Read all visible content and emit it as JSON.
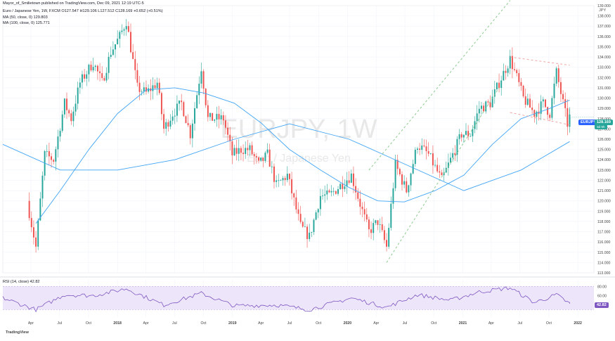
{
  "header": {
    "publisher": "Mayor_of_Smilietown published on TradingView.com, Dec 09, 2021 12:19 UTC-5",
    "symbol_line": "Euro / Japanese Yen, 1W, FXCM  O127.547  H129.106  L127.512  C128.169  +0.652 (+0.51%)",
    "ma50_line": "MA (50, close, 0)  129.803",
    "ma100_line": "MA (100, close, 0)  125.771",
    "currency": "JPY"
  },
  "watermark": {
    "symbol": "EURJPY, 1W",
    "name": "Euro / Japanese Yen"
  },
  "badges": {
    "symbol": "EURJPY",
    "price": "128.169",
    "countdown": "3d 9h"
  },
  "rsi": {
    "label": "RSI (14, close)  42.82",
    "value": 42.82
  },
  "footer": {
    "brand": "TradingView"
  },
  "colors": {
    "up": "#26a69a",
    "down": "#ef5350",
    "ma": "#42a5f5",
    "rsi": "#7e57c2",
    "rsi_band": "#ede5fa",
    "trend_green": "#81c784",
    "trend_red": "#ef9a9a"
  },
  "chart_data": {
    "type": "candlestick",
    "title": "Euro / Japanese Yen, 1W, FXCM",
    "y_ticks": [
      "139.000",
      "138.000",
      "137.000",
      "136.000",
      "135.000",
      "134.000",
      "133.000",
      "132.000",
      "131.000",
      "130.000",
      "129.000",
      "128.000",
      "127.000",
      "126.000",
      "125.000",
      "124.000",
      "123.000",
      "122.000",
      "121.000",
      "120.000",
      "119.000",
      "118.000",
      "117.000",
      "116.000",
      "115.000",
      "114.000",
      "113.000"
    ],
    "ylim": [
      113,
      139
    ],
    "x_ticks": [
      "Apr",
      "Jul",
      "Oct",
      "2018",
      "Apr",
      "Jul",
      "Oct",
      "2019",
      "Apr",
      "Jul",
      "Oct",
      "2020",
      "Apr",
      "Jul",
      "Oct",
      "2021",
      "Apr",
      "Jul",
      "Oct",
      "2022"
    ],
    "price_anchors": [
      {
        "date": "2017-03-20",
        "price": 120.0
      },
      {
        "date": "2017-04-17",
        "price": 115.5
      },
      {
        "date": "2017-05-15",
        "price": 124.5
      },
      {
        "date": "2017-06-12",
        "price": 124.0
      },
      {
        "date": "2017-07-17",
        "price": 129.5
      },
      {
        "date": "2017-08-07",
        "price": 128.0
      },
      {
        "date": "2017-09-04",
        "price": 131.5
      },
      {
        "date": "2017-10-16",
        "price": 133.5
      },
      {
        "date": "2017-11-13",
        "price": 131.5
      },
      {
        "date": "2017-12-11",
        "price": 134.5
      },
      {
        "date": "2018-01-08",
        "price": 136.0
      },
      {
        "date": "2018-01-29",
        "price": 137.5
      },
      {
        "date": "2018-03-05",
        "price": 131.0
      },
      {
        "date": "2018-04-02",
        "price": 130.5
      },
      {
        "date": "2018-05-07",
        "price": 131.5
      },
      {
        "date": "2018-05-28",
        "price": 127.0
      },
      {
        "date": "2018-06-25",
        "price": 128.5
      },
      {
        "date": "2018-07-23",
        "price": 129.5
      },
      {
        "date": "2018-08-20",
        "price": 126.5
      },
      {
        "date": "2018-09-24",
        "price": 133.0
      },
      {
        "date": "2018-10-15",
        "price": 128.0
      },
      {
        "date": "2018-12-03",
        "price": 128.0
      },
      {
        "date": "2018-12-31",
        "price": 124.5
      },
      {
        "date": "2019-01-28",
        "price": 125.0
      },
      {
        "date": "2019-02-25",
        "price": 125.0
      },
      {
        "date": "2019-03-25",
        "price": 123.5
      },
      {
        "date": "2019-04-22",
        "price": 124.5
      },
      {
        "date": "2019-05-20",
        "price": 121.5
      },
      {
        "date": "2019-06-24",
        "price": 122.5
      },
      {
        "date": "2019-08-05",
        "price": 117.5
      },
      {
        "date": "2019-09-02",
        "price": 116.5
      },
      {
        "date": "2019-10-07",
        "price": 120.5
      },
      {
        "date": "2019-11-04",
        "price": 120.5
      },
      {
        "date": "2019-12-09",
        "price": 121.5
      },
      {
        "date": "2020-01-13",
        "price": 122.5
      },
      {
        "date": "2020-02-17",
        "price": 119.0
      },
      {
        "date": "2020-03-09",
        "price": 117.0
      },
      {
        "date": "2020-04-06",
        "price": 118.0
      },
      {
        "date": "2020-05-04",
        "price": 115.5
      },
      {
        "date": "2020-06-01",
        "price": 123.5
      },
      {
        "date": "2020-07-06",
        "price": 121.0
      },
      {
        "date": "2020-08-10",
        "price": 125.5
      },
      {
        "date": "2020-09-14",
        "price": 124.5
      },
      {
        "date": "2020-10-26",
        "price": 122.0
      },
      {
        "date": "2020-11-23",
        "price": 124.0
      },
      {
        "date": "2020-12-28",
        "price": 126.5
      },
      {
        "date": "2021-01-25",
        "price": 126.5
      },
      {
        "date": "2021-02-22",
        "price": 129.0
      },
      {
        "date": "2021-03-29",
        "price": 129.5
      },
      {
        "date": "2021-04-26",
        "price": 131.5
      },
      {
        "date": "2021-05-31",
        "price": 133.8
      },
      {
        "date": "2021-06-21",
        "price": 132.0
      },
      {
        "date": "2021-07-12",
        "price": 130.0
      },
      {
        "date": "2021-08-16",
        "price": 128.5
      },
      {
        "date": "2021-09-13",
        "price": 129.5
      },
      {
        "date": "2021-10-04",
        "price": 128.5
      },
      {
        "date": "2021-10-25",
        "price": 132.5
      },
      {
        "date": "2021-11-15",
        "price": 129.5
      },
      {
        "date": "2021-11-29",
        "price": 127.5
      },
      {
        "date": "2021-12-06",
        "price": 128.169
      }
    ],
    "ma50": [
      {
        "date": "2017-04-17",
        "value": 117.8
      },
      {
        "date": "2017-07-03",
        "value": 121.0
      },
      {
        "date": "2017-10-02",
        "value": 125.0
      },
      {
        "date": "2018-01-01",
        "value": 128.5
      },
      {
        "date": "2018-04-02",
        "value": 130.8
      },
      {
        "date": "2018-07-02",
        "value": 131.0
      },
      {
        "date": "2018-10-01",
        "value": 130.5
      },
      {
        "date": "2019-01-07",
        "value": 129.5
      },
      {
        "date": "2019-04-01",
        "value": 127.6
      },
      {
        "date": "2019-07-01",
        "value": 125.0
      },
      {
        "date": "2019-10-07",
        "value": 123.0
      },
      {
        "date": "2020-01-06",
        "value": 121.3
      },
      {
        "date": "2020-04-06",
        "value": 120.0
      },
      {
        "date": "2020-06-29",
        "value": 119.9
      },
      {
        "date": "2020-10-05",
        "value": 121.0
      },
      {
        "date": "2021-01-04",
        "value": 122.5
      },
      {
        "date": "2021-04-05",
        "value": 125.5
      },
      {
        "date": "2021-07-05",
        "value": 128.0
      },
      {
        "date": "2021-10-04",
        "value": 129.0
      },
      {
        "date": "2021-12-06",
        "value": 129.803
      }
    ],
    "ma100": [
      {
        "date": "2017-01-02",
        "value": 125.5
      },
      {
        "date": "2017-07-03",
        "value": 123.0
      },
      {
        "date": "2018-01-01",
        "value": 123.0
      },
      {
        "date": "2018-07-02",
        "value": 124.0
      },
      {
        "date": "2019-01-07",
        "value": 126.0
      },
      {
        "date": "2019-07-01",
        "value": 127.5
      },
      {
        "date": "2020-01-06",
        "value": 126.0
      },
      {
        "date": "2020-07-06",
        "value": 123.5
      },
      {
        "date": "2021-01-04",
        "value": 121.0
      },
      {
        "date": "2021-07-05",
        "value": 123.0
      },
      {
        "date": "2021-12-06",
        "value": 125.771
      }
    ],
    "rsi_series": [
      {
        "date": "2017-01-02",
        "value": 55
      },
      {
        "date": "2017-04-17",
        "value": 30
      },
      {
        "date": "2017-07-17",
        "value": 62
      },
      {
        "date": "2017-10-16",
        "value": 60
      },
      {
        "date": "2018-01-29",
        "value": 75
      },
      {
        "date": "2018-05-28",
        "value": 40
      },
      {
        "date": "2018-09-24",
        "value": 65
      },
      {
        "date": "2019-01-07",
        "value": 38
      },
      {
        "date": "2019-05-20",
        "value": 40
      },
      {
        "date": "2019-09-02",
        "value": 30
      },
      {
        "date": "2020-01-13",
        "value": 55
      },
      {
        "date": "2020-05-04",
        "value": 35
      },
      {
        "date": "2020-08-10",
        "value": 62
      },
      {
        "date": "2020-11-23",
        "value": 50
      },
      {
        "date": "2021-02-22",
        "value": 68
      },
      {
        "date": "2021-05-31",
        "value": 77
      },
      {
        "date": "2021-08-16",
        "value": 45
      },
      {
        "date": "2021-10-25",
        "value": 62
      },
      {
        "date": "2021-12-06",
        "value": 42.82
      }
    ],
    "rsi_ticks": [
      "80.00",
      "60.00",
      "40.00"
    ],
    "rsi_ylim": [
      20,
      85
    ],
    "trendlines": [
      {
        "kind": "channel-upper",
        "color": "green",
        "from": {
          "date": "2020-03-09",
          "price": 123.0
        },
        "to": {
          "date": "2021-05-31",
          "price": 139.5
        }
      },
      {
        "kind": "channel-lower",
        "color": "green",
        "from": {
          "date": "2020-05-04",
          "price": 114.0
        },
        "to": {
          "date": "2021-04-26",
          "price": 131.0
        }
      },
      {
        "kind": "wedge-upper",
        "color": "red",
        "from": {
          "date": "2021-05-31",
          "price": 134.0
        },
        "to": {
          "date": "2021-12-06",
          "price": 133.2
        }
      },
      {
        "kind": "wedge-lower",
        "color": "red",
        "from": {
          "date": "2021-05-31",
          "price": 128.6
        },
        "to": {
          "date": "2021-12-06",
          "price": 127.4
        }
      }
    ]
  }
}
